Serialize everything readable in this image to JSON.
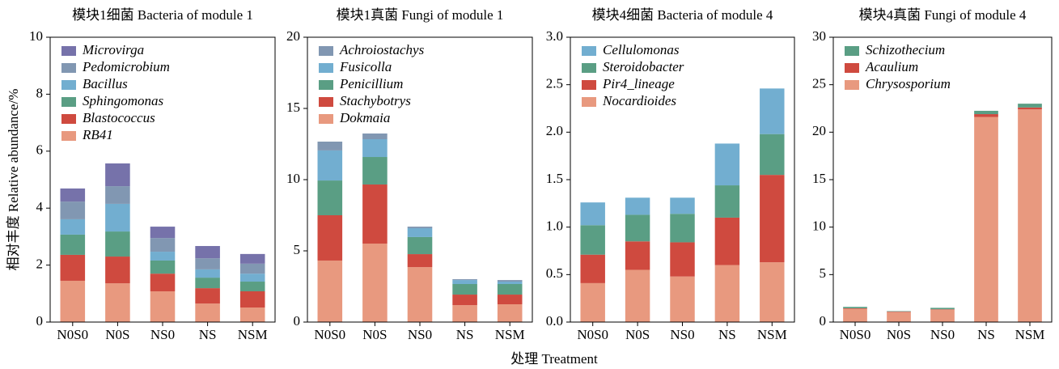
{
  "y_label": "相对丰度 Relative abundance/%",
  "x_label": "处理 Treatment",
  "chart_data": [
    {
      "type": "bar",
      "stacked": true,
      "legend": "upper left",
      "title": "模块1细菌 Bacteria of module 1",
      "categories": [
        "N0S0",
        "N0S",
        "NS0",
        "NS",
        "NSM"
      ],
      "ylim": [
        0,
        10
      ],
      "yticks": [
        0,
        2,
        4,
        6,
        8,
        10
      ],
      "series": [
        {
          "name": "RB41",
          "color": "#e8997f",
          "values": [
            1.45,
            1.36,
            1.08,
            0.65,
            0.51
          ]
        },
        {
          "name": "Blastococcus",
          "color": "#cf4a3f",
          "values": [
            0.91,
            0.94,
            0.62,
            0.54,
            0.57
          ]
        },
        {
          "name": "Sphingomonas",
          "color": "#5a9e84",
          "values": [
            0.71,
            0.88,
            0.46,
            0.37,
            0.34
          ]
        },
        {
          "name": "Bacillus",
          "color": "#72aed0",
          "values": [
            0.54,
            0.97,
            0.31,
            0.29,
            0.28
          ]
        },
        {
          "name": "Pedomicrobium",
          "color": "#8197b2",
          "values": [
            0.62,
            0.62,
            0.48,
            0.39,
            0.35
          ]
        },
        {
          "name": "Microvirga",
          "color": "#7672aa",
          "values": [
            0.46,
            0.8,
            0.4,
            0.43,
            0.34
          ]
        }
      ]
    },
    {
      "type": "bar",
      "stacked": true,
      "legend": "upper left",
      "title": "模块1真菌 Fungi of module 1",
      "categories": [
        "N0S0",
        "N0S",
        "NS0",
        "NS",
        "NSM"
      ],
      "ylim": [
        0,
        20
      ],
      "yticks": [
        0,
        5,
        10,
        15,
        20
      ],
      "series": [
        {
          "name": "Dokmaia",
          "color": "#e8997f",
          "values": [
            4.32,
            5.51,
            3.86,
            1.19,
            1.25
          ]
        },
        {
          "name": "Stachybotrys",
          "color": "#cf4a3f",
          "values": [
            3.18,
            4.15,
            0.91,
            0.74,
            0.68
          ]
        },
        {
          "name": "Penicillium",
          "color": "#5a9e84",
          "values": [
            2.44,
            1.93,
            1.2,
            0.74,
            0.74
          ]
        },
        {
          "name": "Fusicolla",
          "color": "#72aed0",
          "values": [
            2.11,
            1.25,
            0.62,
            0.28,
            0.17
          ]
        },
        {
          "name": "Achroiostachys",
          "color": "#8197b2",
          "values": [
            0.62,
            0.4,
            0.11,
            0.06,
            0.11
          ]
        }
      ]
    },
    {
      "type": "bar",
      "stacked": true,
      "legend": "upper left",
      "title": "模块4细菌 Bacteria of module 4",
      "categories": [
        "N0S0",
        "N0S",
        "NS0",
        "NS",
        "NSM"
      ],
      "ylim": [
        0,
        3
      ],
      "yticks": [
        {
          "value": 0,
          "label": "0.0"
        },
        0.5,
        {
          "value": 1,
          "label": "1.0"
        },
        1.5,
        {
          "value": 2,
          "label": "2.0"
        },
        2.5,
        {
          "value": 3,
          "label": "3.0"
        }
      ],
      "series": [
        {
          "name": "Nocardioides",
          "color": "#e8997f",
          "values": [
            0.41,
            0.55,
            0.48,
            0.6,
            0.63
          ]
        },
        {
          "name": "Pir4_lineage",
          "color": "#cf4a3f",
          "values": [
            0.3,
            0.3,
            0.36,
            0.5,
            0.92
          ]
        },
        {
          "name": "Steroidobacter",
          "color": "#5a9e84",
          "values": [
            0.31,
            0.28,
            0.3,
            0.34,
            0.43
          ]
        },
        {
          "name": "Cellulomonas",
          "color": "#72aed0",
          "values": [
            0.24,
            0.18,
            0.17,
            0.44,
            0.48
          ]
        }
      ]
    },
    {
      "type": "bar",
      "stacked": true,
      "legend": "upper left",
      "title": "模块4真菌 Fungi of module 4",
      "categories": [
        "N0S0",
        "N0S",
        "NS0",
        "NS",
        "NSM"
      ],
      "ylim": [
        0,
        30
      ],
      "yticks": [
        0,
        5,
        10,
        15,
        20,
        25,
        30
      ],
      "series": [
        {
          "name": "Chrysosporium",
          "color": "#e8997f",
          "values": [
            1.4,
            1.05,
            1.3,
            21.6,
            22.4
          ]
        },
        {
          "name": "Acaulium",
          "color": "#cf4a3f",
          "values": [
            0.05,
            0.05,
            0.05,
            0.3,
            0.2
          ]
        },
        {
          "name": "Schizothecium",
          "color": "#5a9e84",
          "values": [
            0.15,
            0.05,
            0.15,
            0.35,
            0.4
          ]
        }
      ]
    }
  ]
}
